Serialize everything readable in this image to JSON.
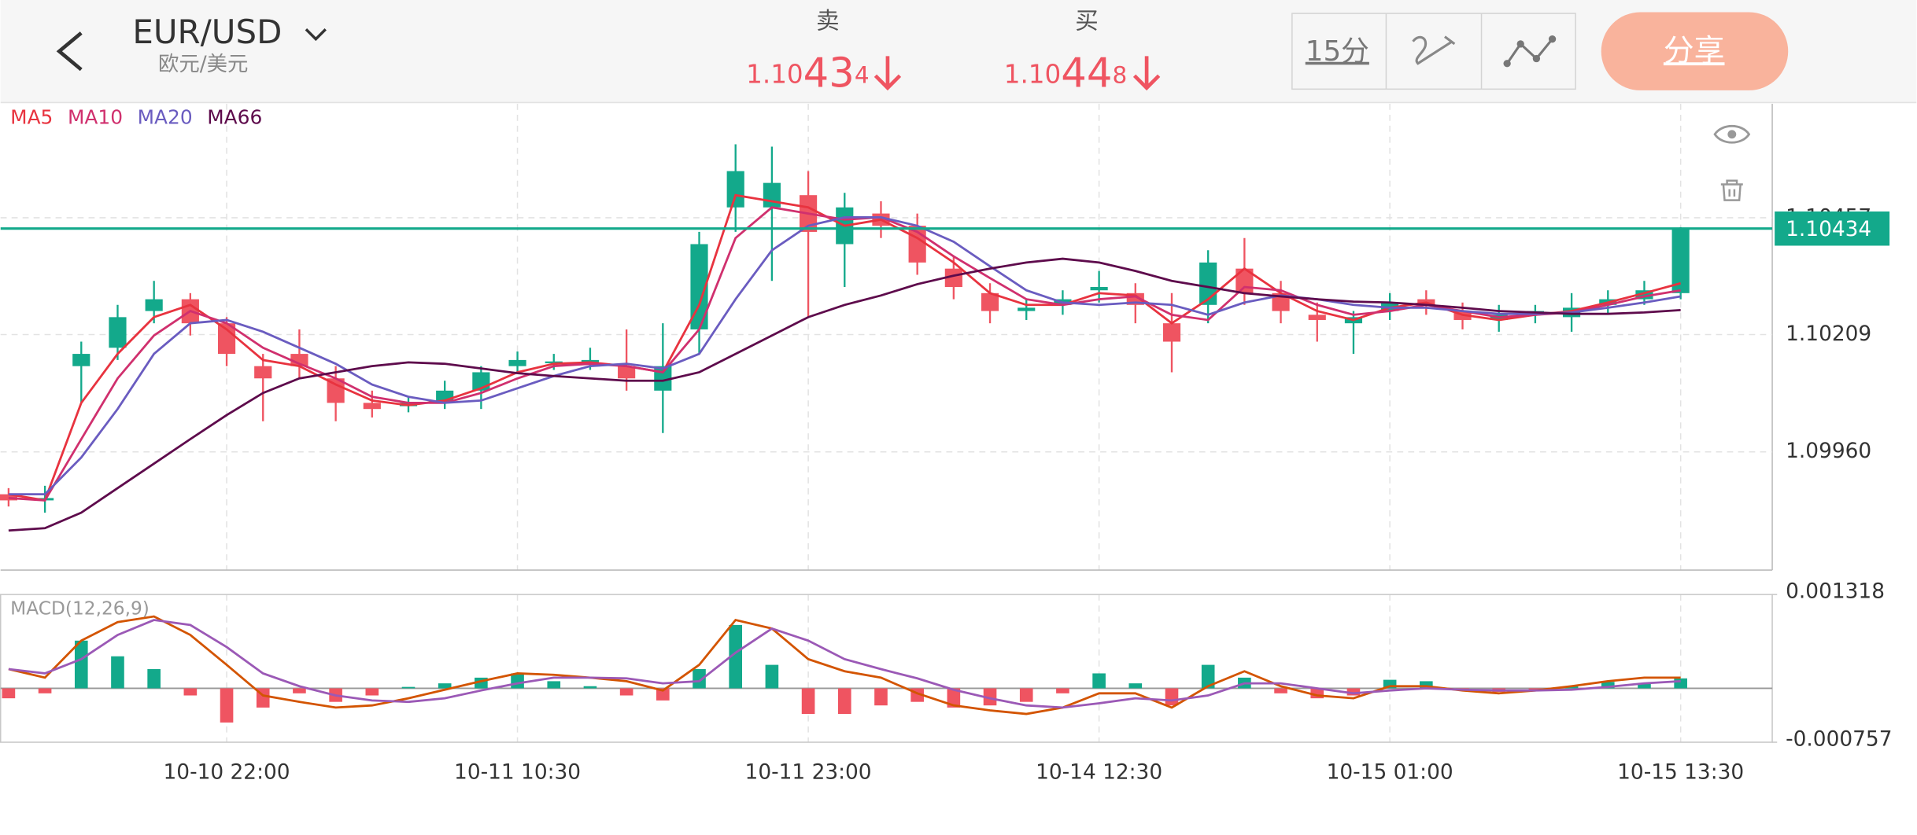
{
  "header": {
    "symbol": "EUR/USD",
    "symbol_cn": "欧元/美元",
    "sell": {
      "label": "卖",
      "parts": [
        "1.10",
        "43",
        "4"
      ]
    },
    "buy": {
      "label": "买",
      "parts": [
        "1.10",
        "44",
        "8"
      ]
    },
    "interval": "15分",
    "share": "分享"
  },
  "chart_data": [
    {
      "type": "candlestick",
      "up_color": "#13a98b",
      "down_color": "#ef5461",
      "open": [
        1.0987,
        1.09857,
        1.10142,
        1.10181,
        1.10259,
        1.10284,
        1.10233,
        1.10142,
        1.10168,
        1.10116,
        1.10064,
        1.10057,
        1.10064,
        1.1009,
        1.10142,
        1.1015,
        1.1015,
        1.10142,
        1.1009,
        1.1022,
        1.10479,
        1.10479,
        1.10505,
        1.10401,
        1.10466,
        1.1044,
        1.10349,
        1.10297,
        1.10259,
        1.10272,
        1.10303,
        1.10297,
        1.10233,
        1.10272,
        1.10349,
        1.10297,
        1.10251,
        1.10233,
        1.10259,
        1.10284,
        1.10259,
        1.1024,
        1.10251,
        1.10246,
        1.10272,
        1.10284,
        1.10297
      ],
      "high": [
        1.09883,
        1.09888,
        1.10194,
        1.10272,
        1.10323,
        1.10297,
        1.10246,
        1.10168,
        1.1022,
        1.10142,
        1.1009,
        1.10077,
        1.10111,
        1.10142,
        1.10173,
        1.10168,
        1.10181,
        1.1022,
        1.10233,
        1.10427,
        1.10613,
        1.10608,
        1.10556,
        1.1051,
        1.10492,
        1.10466,
        1.10375,
        1.10318,
        1.10284,
        1.10303,
        1.10344,
        1.10318,
        1.10297,
        1.10388,
        1.10414,
        1.10323,
        1.10277,
        1.10259,
        1.10297,
        1.10303,
        1.10277,
        1.10272,
        1.10272,
        1.10297,
        1.10303,
        1.10323,
        1.10437
      ],
      "low": [
        1.09844,
        1.09831,
        1.10064,
        1.10155,
        1.10233,
        1.10207,
        1.10142,
        1.10025,
        1.10116,
        1.10025,
        1.10033,
        1.10044,
        1.10051,
        1.10051,
        1.10129,
        1.10134,
        1.10134,
        1.1009,
        1.1,
        1.10168,
        1.10427,
        1.10323,
        1.10246,
        1.1031,
        1.10414,
        1.10336,
        1.10284,
        1.10233,
        1.1024,
        1.10251,
        1.10277,
        1.10233,
        1.10129,
        1.10233,
        1.10272,
        1.10233,
        1.10194,
        1.10168,
        1.1024,
        1.10251,
        1.1022,
        1.10215,
        1.10233,
        1.10215,
        1.10251,
        1.10272,
        1.10284
      ],
      "close": [
        1.09857,
        1.09862,
        1.10168,
        1.10246,
        1.10284,
        1.10233,
        1.10168,
        1.10116,
        1.10142,
        1.10064,
        1.10051,
        1.10064,
        1.1009,
        1.10129,
        1.10155,
        1.10152,
        1.10155,
        1.10116,
        1.10142,
        1.10401,
        1.10556,
        1.10531,
        1.10427,
        1.10479,
        1.1044,
        1.10362,
        1.1031,
        1.10259,
        1.10266,
        1.10284,
        1.1031,
        1.10272,
        1.10194,
        1.10362,
        1.10297,
        1.10259,
        1.1024,
        1.10246,
        1.10277,
        1.10272,
        1.1024,
        1.10251,
        1.10259,
        1.10266,
        1.10284,
        1.10303,
        1.10434
      ],
      "series": [
        {
          "name": "MA5",
          "color": "#e8333f",
          "values": [
            1.0987,
            1.09857,
            1.10064,
            1.10168,
            1.10246,
            1.10272,
            1.1022,
            1.10155,
            1.10142,
            1.10103,
            1.10069,
            1.10059,
            1.10069,
            1.10095,
            1.10129,
            1.10147,
            1.1015,
            1.10142,
            1.10129,
            1.10272,
            1.10505,
            1.10492,
            1.10479,
            1.1044,
            1.10453,
            1.10414,
            1.10362,
            1.10297,
            1.10272,
            1.10272,
            1.10297,
            1.10292,
            1.10233,
            1.10284,
            1.10349,
            1.10297,
            1.10259,
            1.1024,
            1.10266,
            1.10277,
            1.10251,
            1.1024,
            1.10251,
            1.10259,
            1.10277,
            1.10297,
            1.10318
          ]
        },
        {
          "name": "MA10",
          "color": "#d0306e",
          "values": [
            1.09862,
            1.09857,
            1.09987,
            1.10116,
            1.10207,
            1.10259,
            1.10233,
            1.10181,
            1.10147,
            1.10116,
            1.10077,
            1.10064,
            1.10064,
            1.10085,
            1.10116,
            1.10142,
            1.10147,
            1.10142,
            1.10129,
            1.1022,
            1.10414,
            1.10479,
            1.10466,
            1.10453,
            1.10458,
            1.10427,
            1.10375,
            1.10329,
            1.10284,
            1.10272,
            1.10284,
            1.1029,
            1.10251,
            1.1024,
            1.1031,
            1.10303,
            1.10272,
            1.10251,
            1.10259,
            1.10272,
            1.10259,
            1.10246,
            1.10251,
            1.10256,
            1.10272,
            1.1029,
            1.10303
          ]
        },
        {
          "name": "MA20",
          "color": "#6a5cc0",
          "values": [
            1.0987,
            1.0987,
            1.09948,
            1.10051,
            1.10168,
            1.10233,
            1.1024,
            1.10215,
            1.10181,
            1.10147,
            1.10103,
            1.10077,
            1.10064,
            1.10069,
            1.10095,
            1.10121,
            1.10142,
            1.10147,
            1.10137,
            1.10168,
            1.10284,
            1.10388,
            1.1044,
            1.10458,
            1.10458,
            1.1044,
            1.10406,
            1.10354,
            1.10303,
            1.10277,
            1.10272,
            1.10277,
            1.10272,
            1.10251,
            1.10277,
            1.10292,
            1.10284,
            1.10272,
            1.10266,
            1.10266,
            1.10259,
            1.10253,
            1.10253,
            1.10256,
            1.10266,
            1.10277,
            1.1029
          ]
        },
        {
          "name": "MA66",
          "color": "#5e0b4c",
          "values": [
            1.09793,
            1.09798,
            1.09831,
            1.09883,
            1.09935,
            1.09987,
            1.10038,
            1.10085,
            1.10116,
            1.10129,
            1.10142,
            1.1015,
            1.10147,
            1.10137,
            1.10127,
            1.10121,
            1.10116,
            1.10111,
            1.10111,
            1.10129,
            1.10168,
            1.10207,
            1.10246,
            1.10272,
            1.10292,
            1.10316,
            1.10334,
            1.10349,
            1.10362,
            1.1037,
            1.10362,
            1.10344,
            1.10323,
            1.1031,
            1.10297,
            1.1029,
            1.10284,
            1.10279,
            1.10277,
            1.10272,
            1.10266,
            1.10259,
            1.10256,
            1.10253,
            1.10253,
            1.10256,
            1.10261
          ]
        }
      ],
      "ylim": [
        1.09709,
        1.10699
      ],
      "yticks": [
        {
          "value": 1.0996,
          "label": "1.09960"
        },
        {
          "value": 1.10209,
          "label": "1.10209"
        },
        {
          "value": 1.10457,
          "label": "1.10457"
        }
      ],
      "xlim": [
        -0.22,
        48.52
      ],
      "xticks": [
        {
          "value": 6,
          "label": "10-10 22:00"
        },
        {
          "value": 14,
          "label": "10-11 10:30"
        },
        {
          "value": 22,
          "label": "10-11 23:00"
        },
        {
          "value": 30,
          "label": "10-14 12:30"
        },
        {
          "value": 38,
          "label": "10-15 01:00"
        },
        {
          "value": 46,
          "label": "10-15 13:30"
        }
      ],
      "grid": true,
      "last_price": {
        "value": 1.10434,
        "label": "1.10434"
      },
      "last_price_color": "#13a98b"
    },
    {
      "type": "macd",
      "title": "MACD(12,26,9)",
      "up_color": "#13a98b",
      "down_color": "#ef5461",
      "values": [
        -0.00014,
        -7e-05,
        0.00067,
        0.00045,
        0.00027,
        -0.0001,
        -0.00048,
        -0.00027,
        -7e-05,
        -0.00019,
        -0.0001,
        2e-05,
        7e-05,
        0.00015,
        0.00021,
        0.0001,
        3e-05,
        -0.0001,
        -0.00017,
        0.00027,
        0.00089,
        0.00033,
        -0.00036,
        -0.00036,
        -0.00024,
        -0.00019,
        -0.00027,
        -0.00024,
        -0.00019,
        -7e-05,
        0.00021,
        7e-05,
        -0.00024,
        0.00033,
        0.00015,
        -7e-05,
        -0.00014,
        -0.0001,
        0.00012,
        0.0001,
        -3e-05,
        -5e-05,
        -2e-05,
        3e-05,
        9e-05,
        7e-05,
        0.00014
      ],
      "series": [
        {
          "color": "#d35400",
          "values": [
            0.00027,
            0.00015,
            0.00067,
            0.00093,
            0.00101,
            0.00075,
            0.00033,
            -0.0001,
            -0.00019,
            -0.00027,
            -0.00024,
            -0.00014,
            -2e-05,
            0.0001,
            0.00021,
            0.00019,
            0.00015,
            0.0001,
            -3e-05,
            0.00033,
            0.00096,
            0.00084,
            0.00041,
            0.00024,
            0.00015,
            -7e-05,
            -0.00024,
            -0.00031,
            -0.00036,
            -0.00027,
            -7e-05,
            -7e-05,
            -0.00027,
            3e-05,
            0.00024,
            3e-05,
            -0.0001,
            -0.00014,
            3e-05,
            3e-05,
            -3e-05,
            -7e-05,
            -3e-05,
            3e-05,
            0.0001,
            0.00015,
            0.00015
          ]
        },
        {
          "color": "#9b59b6",
          "values": [
            0.00027,
            0.00021,
            0.00041,
            0.00075,
            0.00096,
            0.00089,
            0.00058,
            0.00021,
            3e-05,
            -0.0001,
            -0.00017,
            -0.00019,
            -0.00014,
            -3e-05,
            7e-05,
            0.00015,
            0.00015,
            0.00014,
            7e-05,
            0.0001,
            0.0005,
            0.00084,
            0.00067,
            0.00041,
            0.00027,
            0.00014,
            -2e-05,
            -0.00014,
            -0.00024,
            -0.00027,
            -0.00021,
            -0.00014,
            -0.00017,
            -0.0001,
            7e-05,
            7e-05,
            0,
            -7e-05,
            -3e-05,
            0,
            -2e-05,
            -3e-05,
            -3e-05,
            -2e-05,
            2e-05,
            7e-05,
            0.0001
          ]
        }
      ],
      "ylim": [
        -0.000757,
        0.001318
      ],
      "yticks": [
        0.001318,
        -0.000757
      ]
    }
  ]
}
